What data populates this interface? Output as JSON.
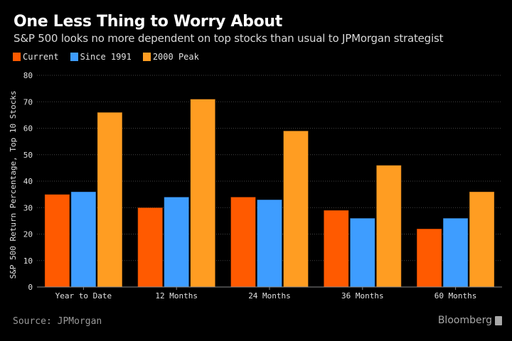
{
  "chart_data": {
    "type": "bar",
    "title": "One Less Thing to Worry About",
    "subtitle": "S&P 500 looks no more dependent on top stocks than usual to JPMorgan strategist",
    "categories": [
      "Year to Date",
      "12 Months",
      "24 Months",
      "36 Months",
      "60 Months"
    ],
    "series": [
      {
        "name": "Current",
        "color": "#ff5a00",
        "values": [
          35,
          30,
          34,
          29,
          22
        ]
      },
      {
        "name": "Since 1991",
        "color": "#3e9dff",
        "values": [
          36,
          34,
          33,
          26,
          26
        ]
      },
      {
        "name": "2000 Peak",
        "color": "#ff9d22",
        "values": [
          66,
          71,
          59,
          46,
          36
        ]
      }
    ],
    "xlabel": "",
    "ylabel": "S&P 500 Return Percentage, Top 10 Stocks",
    "ylim": [
      0,
      80
    ],
    "yticks": [
      0,
      10,
      20,
      30,
      40,
      50,
      60,
      70,
      80
    ],
    "grid": true,
    "legend_position": "top-left"
  },
  "footer": {
    "source": "Source: JPMorgan",
    "brand": "Bloomberg"
  }
}
